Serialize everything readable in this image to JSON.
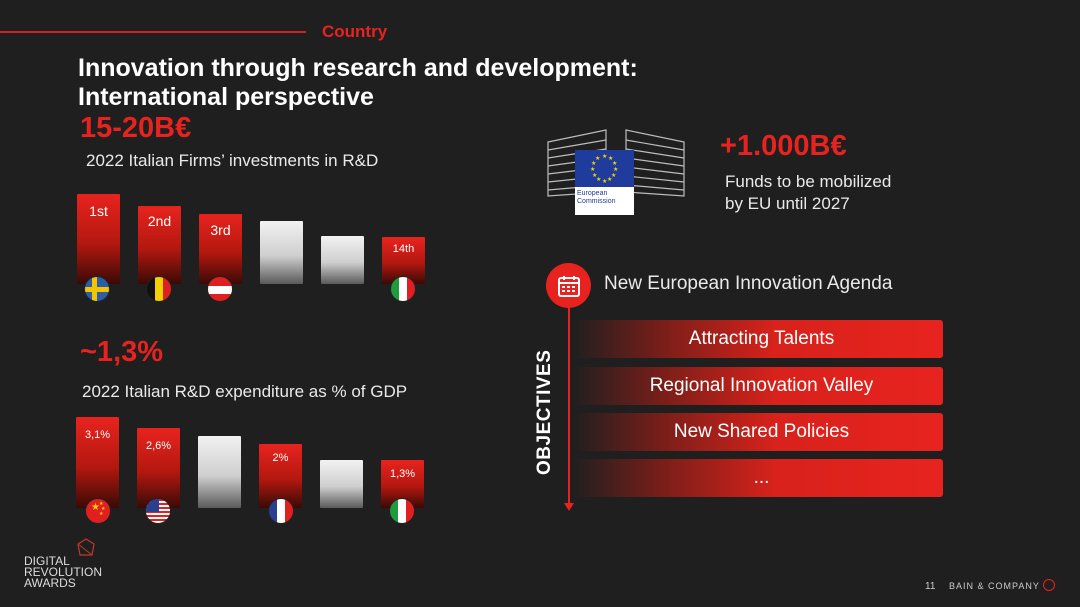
{
  "header": {
    "section": "Country",
    "title_line1": "Innovation through research and development:",
    "title_line2": "International perspective"
  },
  "investments": {
    "headline": "15-20B€",
    "subtitle": "2022 Italian Firms’ investments in R&D",
    "bars": [
      {
        "label": "1st",
        "color": "red",
        "level": 0.92,
        "flag": "sweden-flag"
      },
      {
        "label": "2nd",
        "color": "red",
        "level": 0.8,
        "flag": "belgium-flag"
      },
      {
        "label": "3rd",
        "color": "red",
        "level": 0.71,
        "flag": "austria-flag"
      },
      {
        "label": "",
        "color": "gray",
        "level": 0.6,
        "flag": ""
      },
      {
        "label": "",
        "color": "gray",
        "level": 0.45,
        "flag": ""
      },
      {
        "label": "14th",
        "color": "red",
        "level": 0.4,
        "flag": "italy-flag"
      }
    ]
  },
  "gdp": {
    "headline": "~1,3%",
    "subtitle": "2022 Italian R&D expenditure as % of GDP",
    "bars": [
      {
        "label": "3,1%",
        "color": "red",
        "level": 0.92,
        "flag": "china-flag"
      },
      {
        "label": "2,6%",
        "color": "red",
        "level": 0.82,
        "flag": "usa-flag"
      },
      {
        "label": "",
        "color": "gray",
        "level": 0.72,
        "flag": ""
      },
      {
        "label": "2%",
        "color": "red",
        "level": 0.63,
        "flag": "france-flag"
      },
      {
        "label": "",
        "color": "gray",
        "level": 0.48,
        "flag": ""
      },
      {
        "label": "1,3%",
        "color": "red",
        "level": 0.44,
        "flag": "italy-flag"
      }
    ]
  },
  "eu": {
    "logo_caption": "European Commission",
    "headline": "+1.000B€",
    "line1": "Funds to be mobilized",
    "line2": "by EU until 2027"
  },
  "agenda": {
    "title": "New European Innovation Agenda",
    "side_label": "OBJECTIVES",
    "items": [
      "Attracting Talents",
      "Regional Innovation Valley",
      "New Shared Policies",
      "..."
    ]
  },
  "footer": {
    "logo_line1": "DIGITAL",
    "logo_line2": "REVOLUTION",
    "logo_line3": "AWARDS",
    "page": "11",
    "company": "BAIN & COMPANY"
  },
  "colors": {
    "accent": "#e8231f",
    "background": "#1f1f1f"
  }
}
